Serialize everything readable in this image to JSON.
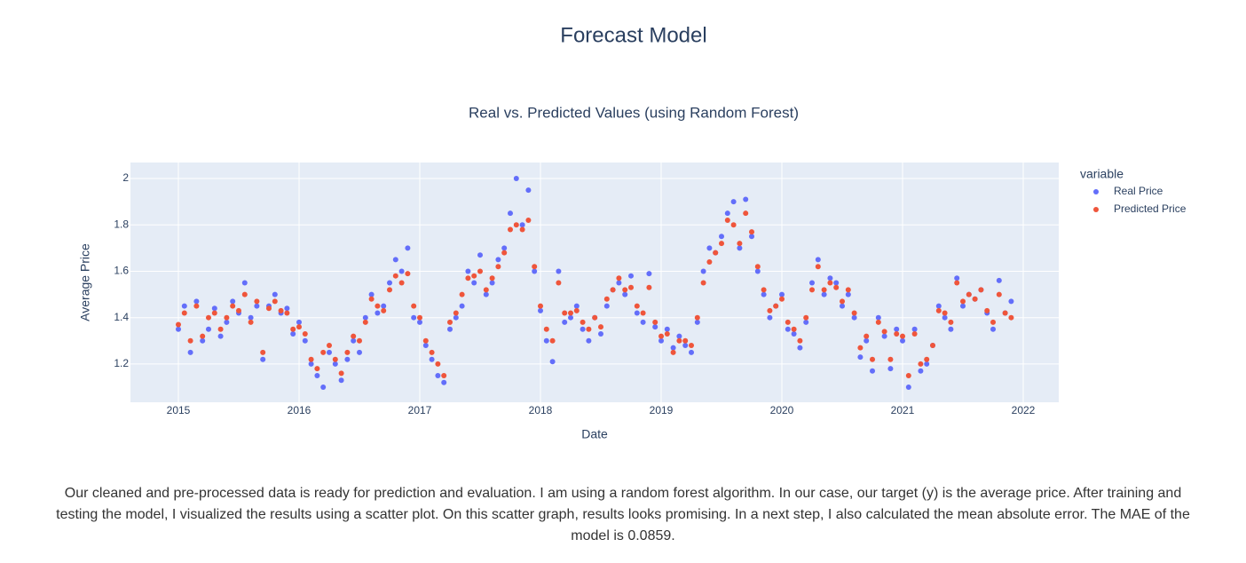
{
  "title": "Forecast Model",
  "chart_data": {
    "type": "scatter",
    "title": "Real vs. Predicted Values (using Random Forest)",
    "x_label": "Date",
    "y_label": "Average Price",
    "legend_title": "variable",
    "legend_position": "right",
    "grid": true,
    "xlim": [
      2014.603,
      2022.294
    ],
    "xticks": [
      2015,
      2016,
      2017,
      2018,
      2019,
      2020,
      2021,
      2022
    ],
    "ylim": [
      1.035,
      2.069
    ],
    "yticks": [
      1.2,
      1.4,
      1.6,
      1.8,
      2
    ],
    "x": [
      2015,
      2015.05,
      2015.1,
      2015.15,
      2015.2,
      2015.25,
      2015.3,
      2015.35,
      2015.4,
      2015.45,
      2015.5,
      2015.55,
      2015.6,
      2015.65,
      2015.7,
      2015.75,
      2015.8,
      2015.85,
      2015.9,
      2015.95,
      2016,
      2016.05,
      2016.1,
      2016.15,
      2016.2,
      2016.25,
      2016.3,
      2016.35,
      2016.4,
      2016.45,
      2016.5,
      2016.55,
      2016.6,
      2016.65,
      2016.7,
      2016.75,
      2016.8,
      2016.85,
      2016.9,
      2016.95,
      2017,
      2017.05,
      2017.1,
      2017.15,
      2017.2,
      2017.25,
      2017.3,
      2017.35,
      2017.4,
      2017.45,
      2017.5,
      2017.55,
      2017.6,
      2017.65,
      2017.7,
      2017.75,
      2017.8,
      2017.85,
      2017.9,
      2017.95,
      2018,
      2018.05,
      2018.1,
      2018.15,
      2018.2,
      2018.25,
      2018.3,
      2018.35,
      2018.4,
      2018.45,
      2018.5,
      2018.55,
      2018.6,
      2018.65,
      2018.7,
      2018.75,
      2018.8,
      2018.85,
      2018.9,
      2018.95,
      2019,
      2019.05,
      2019.1,
      2019.15,
      2019.2,
      2019.25,
      2019.3,
      2019.35,
      2019.4,
      2019.45,
      2019.5,
      2019.55,
      2019.6,
      2019.65,
      2019.7,
      2019.75,
      2019.8,
      2019.85,
      2019.9,
      2019.95,
      2020,
      2020.05,
      2020.1,
      2020.15,
      2020.2,
      2020.25,
      2020.3,
      2020.35,
      2020.4,
      2020.45,
      2020.5,
      2020.55,
      2020.6,
      2020.65,
      2020.7,
      2020.75,
      2020.8,
      2020.85,
      2020.9,
      2020.95,
      2021,
      2021.05,
      2021.1,
      2021.15,
      2021.2,
      2021.25,
      2021.3,
      2021.35,
      2021.4,
      2021.45,
      2021.5,
      2021.55,
      2021.6,
      2021.65,
      2021.7,
      2021.75,
      2021.8,
      2021.85,
      2021.9
    ],
    "series": [
      {
        "name": "Real Price",
        "color": "#636efa",
        "values": [
          1.35,
          1.45,
          1.25,
          1.47,
          1.3,
          1.35,
          1.44,
          1.32,
          1.38,
          1.47,
          1.42,
          1.55,
          1.4,
          1.45,
          1.22,
          1.45,
          1.5,
          1.42,
          1.44,
          1.33,
          1.38,
          1.3,
          1.2,
          1.15,
          1.1,
          1.25,
          1.2,
          1.13,
          1.22,
          1.3,
          1.25,
          1.4,
          1.5,
          1.42,
          1.45,
          1.55,
          1.65,
          1.6,
          1.7,
          1.4,
          1.38,
          1.28,
          1.22,
          1.15,
          1.12,
          1.35,
          1.4,
          1.45,
          1.6,
          1.55,
          1.67,
          1.5,
          1.55,
          1.65,
          1.7,
          1.85,
          2.0,
          1.8,
          1.95,
          1.6,
          1.43,
          1.3,
          1.21,
          1.6,
          1.38,
          1.4,
          1.45,
          1.35,
          1.3,
          1.4,
          1.33,
          1.45,
          1.52,
          1.55,
          1.5,
          1.58,
          1.42,
          1.38,
          1.59,
          1.36,
          1.3,
          1.35,
          1.27,
          1.32,
          1.28,
          1.25,
          1.38,
          1.6,
          1.7,
          1.68,
          1.75,
          1.85,
          1.9,
          1.7,
          1.91,
          1.75,
          1.6,
          1.5,
          1.4,
          1.45,
          1.5,
          1.35,
          1.33,
          1.27,
          1.38,
          1.55,
          1.65,
          1.5,
          1.57,
          1.55,
          1.45,
          1.5,
          1.4,
          1.23,
          1.3,
          1.17,
          1.4,
          1.32,
          1.18,
          1.35,
          1.3,
          1.1,
          1.35,
          1.17,
          1.2,
          1.28,
          1.45,
          1.4,
          1.35,
          1.57,
          1.45,
          1.5,
          1.48,
          1.52,
          1.42,
          1.35,
          1.56,
          1.42,
          1.47
        ]
      },
      {
        "name": "Predicted Price",
        "color": "#ef553b",
        "values": [
          1.37,
          1.42,
          1.3,
          1.45,
          1.32,
          1.4,
          1.42,
          1.35,
          1.4,
          1.45,
          1.43,
          1.5,
          1.38,
          1.47,
          1.25,
          1.44,
          1.47,
          1.43,
          1.42,
          1.35,
          1.36,
          1.33,
          1.22,
          1.18,
          1.25,
          1.28,
          1.22,
          1.16,
          1.25,
          1.32,
          1.3,
          1.38,
          1.48,
          1.45,
          1.43,
          1.52,
          1.58,
          1.55,
          1.59,
          1.45,
          1.4,
          1.3,
          1.25,
          1.2,
          1.15,
          1.38,
          1.42,
          1.5,
          1.57,
          1.58,
          1.6,
          1.52,
          1.57,
          1.62,
          1.68,
          1.78,
          1.8,
          1.78,
          1.82,
          1.62,
          1.45,
          1.35,
          1.3,
          1.55,
          1.42,
          1.42,
          1.43,
          1.38,
          1.35,
          1.4,
          1.36,
          1.48,
          1.52,
          1.57,
          1.52,
          1.53,
          1.45,
          1.42,
          1.53,
          1.38,
          1.32,
          1.33,
          1.25,
          1.3,
          1.3,
          1.28,
          1.4,
          1.55,
          1.64,
          1.68,
          1.72,
          1.82,
          1.8,
          1.72,
          1.85,
          1.77,
          1.62,
          1.52,
          1.43,
          1.45,
          1.48,
          1.38,
          1.35,
          1.3,
          1.4,
          1.52,
          1.62,
          1.52,
          1.55,
          1.53,
          1.47,
          1.52,
          1.42,
          1.27,
          1.32,
          1.22,
          1.38,
          1.34,
          1.22,
          1.33,
          1.32,
          1.15,
          1.33,
          1.2,
          1.22,
          1.28,
          1.43,
          1.42,
          1.38,
          1.55,
          1.47,
          1.5,
          1.48,
          1.52,
          1.43,
          1.38,
          1.5,
          1.42,
          1.4
        ]
      }
    ]
  },
  "description": "Our cleaned and pre-processed data is ready for prediction and evaluation. I am using a random forest algorithm. In our case, our target (y) is the average price. After training and testing the model, I visualized the results using a scatter plot. On this scatter graph, results looks promising. In a next step, I also calculated the mean absolute error. The MAE of the model is 0.0859."
}
